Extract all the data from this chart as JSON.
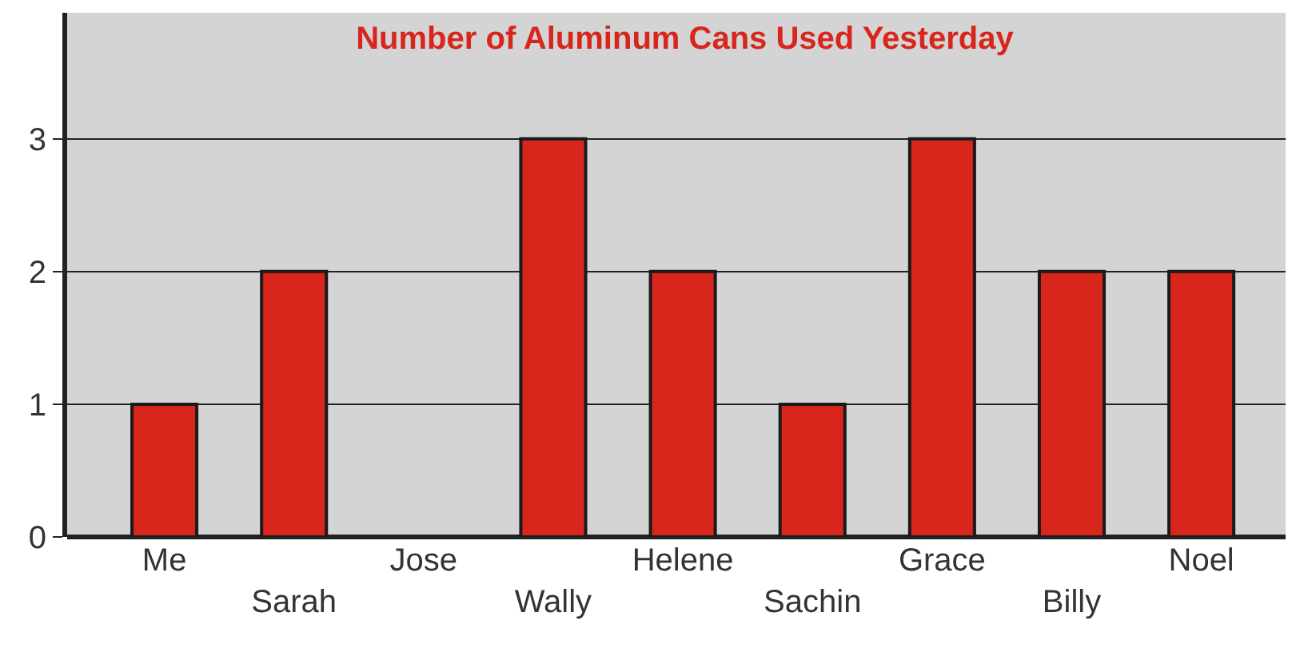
{
  "chart_data": {
    "type": "bar",
    "title": "Number of Aluminum Cans Used Yesterday",
    "categories": [
      "Me",
      "Sarah",
      "Jose",
      "Wally",
      "Helene",
      "Sachin",
      "Grace",
      "Billy",
      "Noel"
    ],
    "values": [
      1,
      2,
      0,
      3,
      2,
      1,
      3,
      2,
      2
    ],
    "color": "#d8261c",
    "ylim": [
      0,
      3.95
    ],
    "yticks": [
      0,
      1,
      2,
      3
    ],
    "grid": "y",
    "legend": false
  }
}
